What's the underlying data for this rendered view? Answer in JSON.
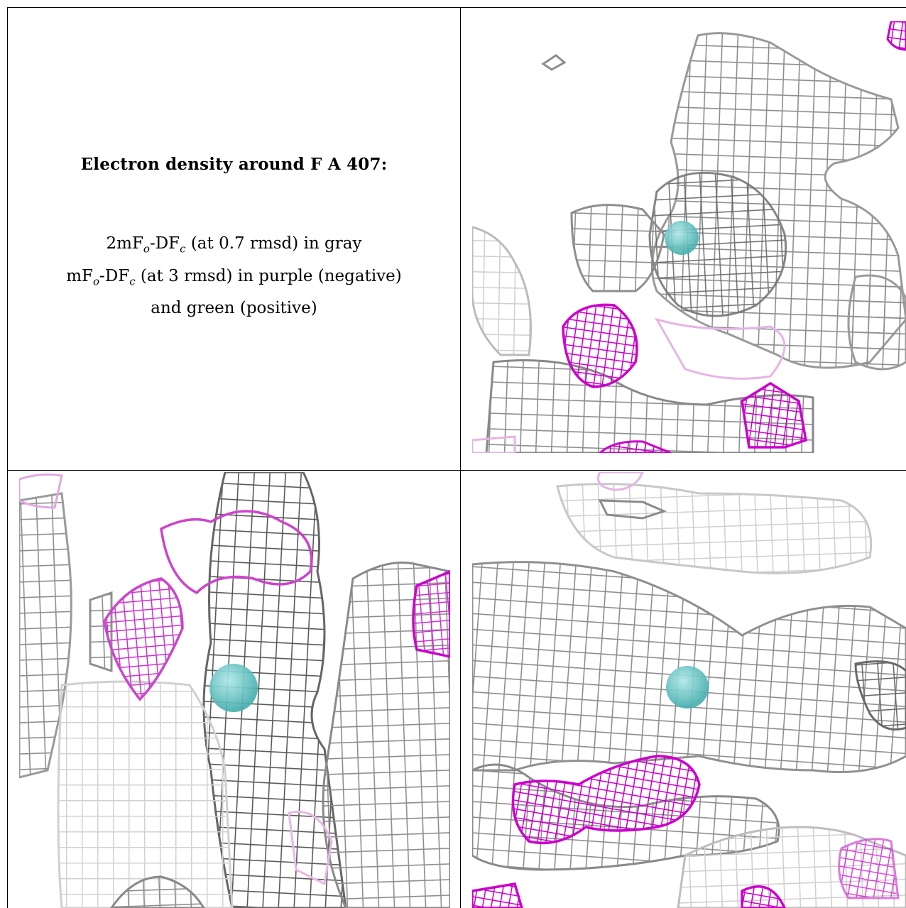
{
  "caption": {
    "title": "Electron density around F A 407:",
    "line1_prefix": "2mF",
    "line1_sub1": "o",
    "line1_mid": "-DF",
    "line1_sub2": "c",
    "line1_suffix": " (at 0.7 rmsd) in gray",
    "line2_prefix": "mF",
    "line2_sub1": "o",
    "line2_mid": "-DF",
    "line2_sub2": "c",
    "line2_suffix": " (at 3 rmsd) in purple (negative)",
    "line3": "and green (positive)"
  },
  "colors": {
    "density_gray": "#8a8a8a",
    "density_dark": "#555555",
    "negative_purple": "#cc00cc",
    "ion_cyan": "#5fc8c8",
    "background": "#ffffff",
    "border": "#000000"
  }
}
